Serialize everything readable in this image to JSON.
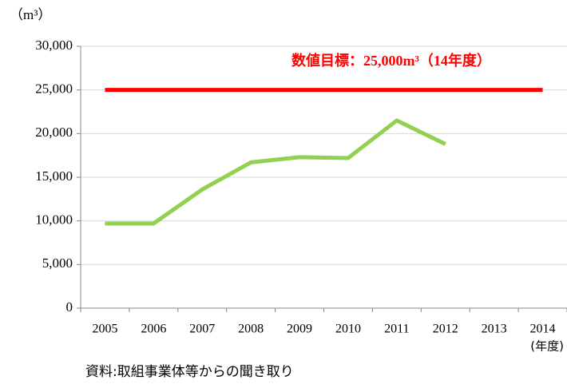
{
  "chart_data": {
    "type": "line",
    "ylabel": "（m³）",
    "xlabel": "(年度)",
    "annotation": "数値目標：25,000m³（14年度）",
    "source": "資料:取組事業体等からの聞き取り",
    "categories": [
      "2005",
      "2006",
      "2007",
      "2008",
      "2009",
      "2010",
      "2011",
      "2012",
      "2013",
      "2014"
    ],
    "series": [
      {
        "color": "#92d050",
        "values": [
          9700,
          9700,
          13600,
          16700,
          17300,
          17200,
          21500,
          18800,
          null,
          null
        ]
      },
      {
        "color": "#ff0000",
        "values": [
          25000,
          25000,
          25000,
          25000,
          25000,
          25000,
          25000,
          25000,
          25000,
          25000
        ]
      }
    ],
    "ylim": [
      0,
      30000
    ],
    "yticks": [
      0,
      {
        "value": 5000,
        "label": "5,000"
      },
      {
        "value": 10000,
        "label": "10,000"
      },
      {
        "value": 15000,
        "label": "15,000"
      },
      {
        "value": 20000,
        "label": "20,000"
      },
      {
        "value": 25000,
        "label": "25,000"
      },
      {
        "value": 30000,
        "label": "30,000"
      }
    ],
    "grid": true
  }
}
